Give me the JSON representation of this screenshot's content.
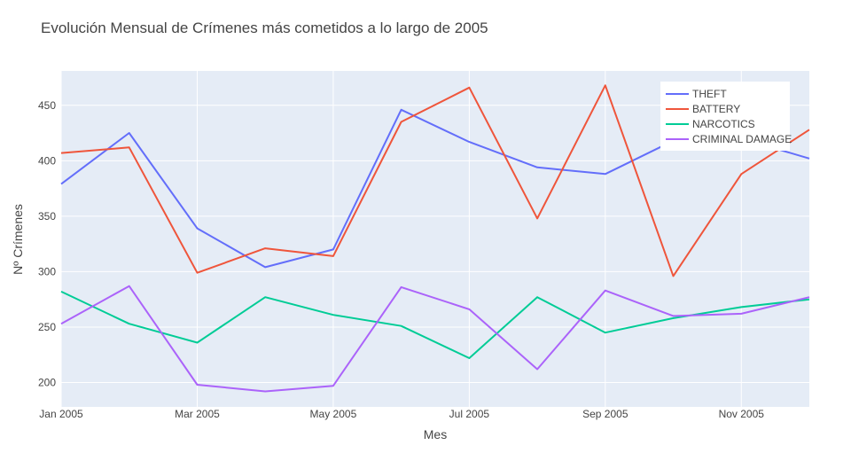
{
  "chart_data": {
    "type": "line",
    "title": "Evolución Mensual de Crímenes más cometidos a lo largo de 2005",
    "xlabel": "Mes",
    "ylabel": "Nº Crímenes",
    "x": [
      "2005-01",
      "2005-02",
      "2005-03",
      "2005-04",
      "2005-05",
      "2005-06",
      "2005-07",
      "2005-08",
      "2005-09",
      "2005-10",
      "2005-11",
      "2005-12"
    ],
    "x_tick_labels": [
      "Jan 2005",
      "Mar 2005",
      "May 2005",
      "Jul 2005",
      "Sep 2005",
      "Nov 2005"
    ],
    "y_ticks": [
      200,
      250,
      300,
      350,
      400,
      450
    ],
    "ylim": [
      178,
      481
    ],
    "grid": true,
    "legend_position": "top-right",
    "background_color": "#e5ecf6",
    "series": [
      {
        "name": "THEFT",
        "color": "#636efa",
        "values": [
          379,
          425,
          339,
          304,
          320,
          446,
          417,
          394,
          388,
          418,
          420,
          402
        ]
      },
      {
        "name": "BATTERY",
        "color": "#ef553b",
        "values": [
          407,
          412,
          299,
          321,
          314,
          435,
          466,
          348,
          468,
          296,
          388,
          428
        ]
      },
      {
        "name": "NARCOTICS",
        "color": "#00cc96",
        "values": [
          282,
          253,
          236,
          277,
          261,
          251,
          222,
          277,
          245,
          258,
          268,
          275
        ]
      },
      {
        "name": "CRIMINAL DAMAGE",
        "color": "#ab63fa",
        "values": [
          253,
          287,
          198,
          192,
          197,
          286,
          266,
          212,
          283,
          260,
          262,
          277
        ]
      }
    ]
  }
}
